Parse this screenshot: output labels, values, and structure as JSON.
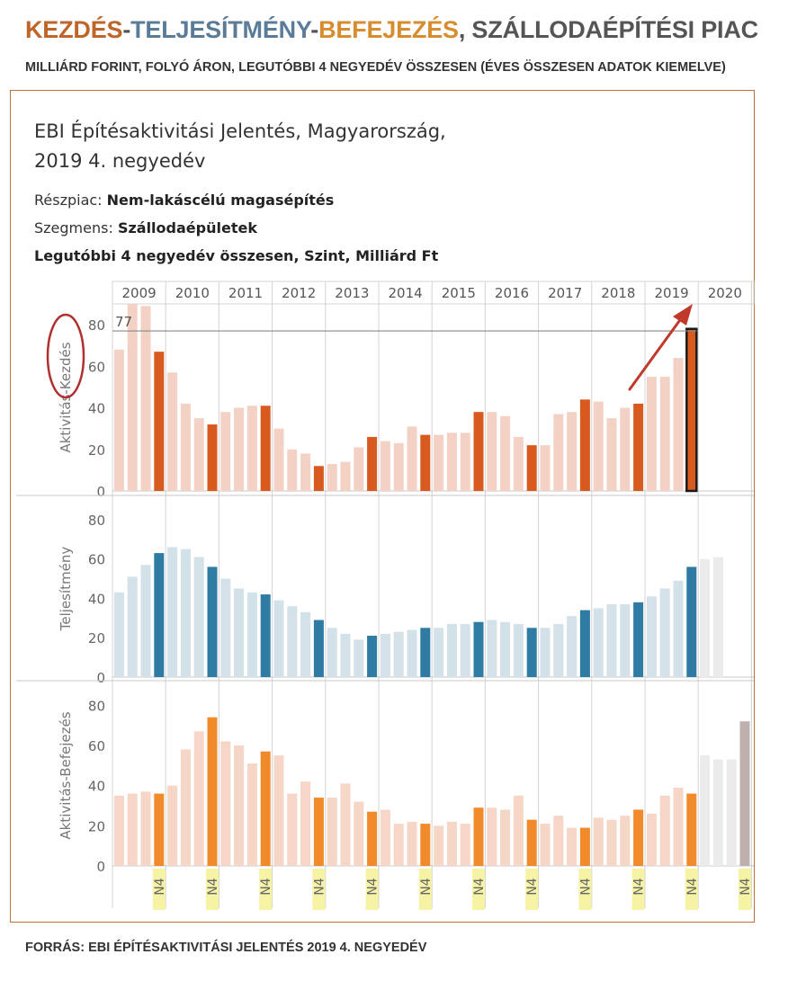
{
  "header": {
    "title_kezdes": "KEZDÉS",
    "title_sep1": "-",
    "title_teljesitmeny": "TELJESÍTMÉNY",
    "title_sep2": "-",
    "title_befejezes": "BEFEJEZÉS",
    "title_rest": ", SZÁLLODAÉPÍTÉSI PIAC",
    "subtitle": "MILLIÁRD FORINT, FOLYÓ ÁRON, LEGUTÓBBI 4 NEGYEDÉV ÖSSZESEN (ÉVES ÖSSZESEN ADATOK KIEMELVE)",
    "colors": {
      "kezdes": "#c0652a",
      "teljesitmeny": "#5b7c99",
      "befejezes": "#d88c30"
    }
  },
  "dashboard": {
    "title_line1": "EBI Építésaktivitási Jelentés, Magyarország,",
    "title_line2": "2019 4. negyedév",
    "reszpiac_label": "Részpiac: ",
    "reszpiac_value": "Nem-lakáscélú magasépítés",
    "szegmens_label": "Szegmens: ",
    "szegmens_value": "Szállodaépületek",
    "measure": "Legutóbbi 4 negyedév összesen, Szint, Milliárd Ft"
  },
  "footer": {
    "source": "FORRÁS: EBI ÉPÍTÉSAKTIVITÁSI JELENTÉS 2019 4. NEGYEDÉV"
  },
  "chart_data": {
    "type": "bar",
    "years": [
      "2009",
      "2010",
      "2011",
      "2012",
      "2013",
      "2014",
      "2015",
      "2016",
      "2017",
      "2018",
      "2019",
      "2020"
    ],
    "quarters_per_year": 4,
    "quarter_label": "N4",
    "ylim": [
      0,
      90
    ],
    "yticks": [
      0,
      20,
      40,
      60,
      80
    ],
    "reference_line": {
      "panel": "Aktivitás-Kezdés",
      "value": 77,
      "label": "77"
    },
    "panels": [
      {
        "name": "Aktivitás-Kezdés",
        "ylabel": "Aktivitás-Kezdés",
        "color_q4": "#d95a1e",
        "color_other": "#f3d2c5",
        "values": [
          68,
          90,
          89,
          67,
          57,
          42,
          35,
          32,
          38,
          40,
          41,
          41,
          30,
          20,
          18,
          12,
          13,
          14,
          21,
          26,
          24,
          23,
          31,
          27,
          27,
          28,
          28,
          38,
          38,
          36,
          26,
          22,
          22,
          37,
          38,
          44,
          43,
          35,
          40,
          42,
          55,
          55,
          64,
          78
        ],
        "highlight_last": true
      },
      {
        "name": "Teljesítmény",
        "ylabel": "Teljesítmény",
        "color_q4": "#2e7ba3",
        "color_other": "#d3e2e9",
        "color_forecast": "#ebebeb",
        "values": [
          43,
          51,
          57,
          63,
          66,
          65,
          61,
          56,
          50,
          45,
          43,
          42,
          39,
          36,
          33,
          29,
          25,
          22,
          19,
          21,
          22,
          23,
          24,
          25,
          25,
          27,
          27,
          28,
          29,
          28,
          27,
          25,
          25,
          27,
          31,
          34,
          35,
          37,
          37,
          38,
          41,
          45,
          49,
          56
        ],
        "forecast_values": [
          60,
          61
        ]
      },
      {
        "name": "Aktivitás-Befejezés",
        "ylabel": "Aktivitás-Befejezés",
        "color_q4": "#f08a2a",
        "color_other": "#f6d6c7",
        "color_forecast": "#ebebeb",
        "color_forecast_q4": "#bdb0ad",
        "values": [
          35,
          36,
          37,
          36,
          40,
          58,
          67,
          74,
          62,
          60,
          51,
          57,
          55,
          36,
          42,
          34,
          34,
          41,
          32,
          27,
          28,
          21,
          22,
          21,
          20,
          22,
          21,
          29,
          29,
          28,
          35,
          23,
          21,
          25,
          19,
          19,
          24,
          23,
          25,
          28,
          26,
          35,
          39,
          36
        ],
        "forecast_values": [
          55,
          53,
          53,
          72
        ]
      }
    ]
  }
}
